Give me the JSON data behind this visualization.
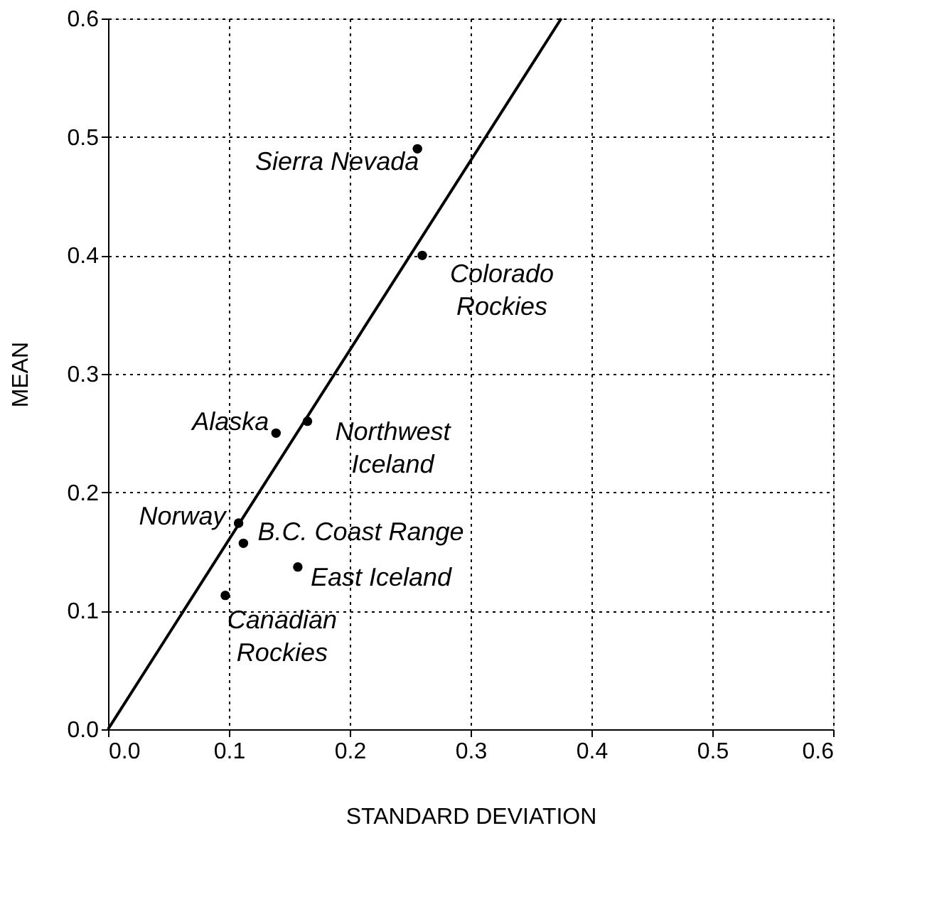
{
  "chart_data": {
    "type": "scatter",
    "xlabel": "STANDARD DEVIATION",
    "ylabel": "MEAN",
    "xlim": [
      0,
      0.6
    ],
    "ylim": [
      0,
      0.6
    ],
    "xticks": [
      {
        "value": 0,
        "label": "0.0"
      },
      0.1,
      0.2,
      0.3,
      0.4,
      0.5,
      0.6
    ],
    "yticks": [
      {
        "value": 0,
        "label": "0.0"
      },
      0.1,
      0.2,
      0.3,
      0.4,
      0.5,
      0.6
    ],
    "grid": true,
    "series": [
      {
        "marker": "circle",
        "color": "#000000",
        "x": [
          0.256,
          0.26,
          0.139,
          0.165,
          0.108,
          0.112,
          0.157,
          0.097
        ],
        "values": [
          0.49,
          0.4,
          0.25,
          0.26,
          0.174,
          0.157,
          0.137,
          0.113
        ]
      },
      {
        "type": "line",
        "color": "#000000",
        "line_style": "solid",
        "x": [
          0,
          0.375
        ],
        "values": [
          0,
          0.6
        ]
      }
    ],
    "annotations": [
      {
        "text": "Sierra Nevada",
        "x": 0.256,
        "y": 0.49
      },
      {
        "text": "Colorado Rockies",
        "x": 0.26,
        "y": 0.4
      },
      {
        "text": "Alaska",
        "x": 0.139,
        "y": 0.25
      },
      {
        "text": "Northwest Iceland",
        "x": 0.165,
        "y": 0.26
      },
      {
        "text": "Norway",
        "x": 0.108,
        "y": 0.174
      },
      {
        "text": "B.C. Coast Range",
        "x": 0.112,
        "y": 0.157
      },
      {
        "text": "East Iceland",
        "x": 0.157,
        "y": 0.137
      },
      {
        "text": "Canadian Rockies",
        "x": 0.097,
        "y": 0.113
      }
    ]
  }
}
